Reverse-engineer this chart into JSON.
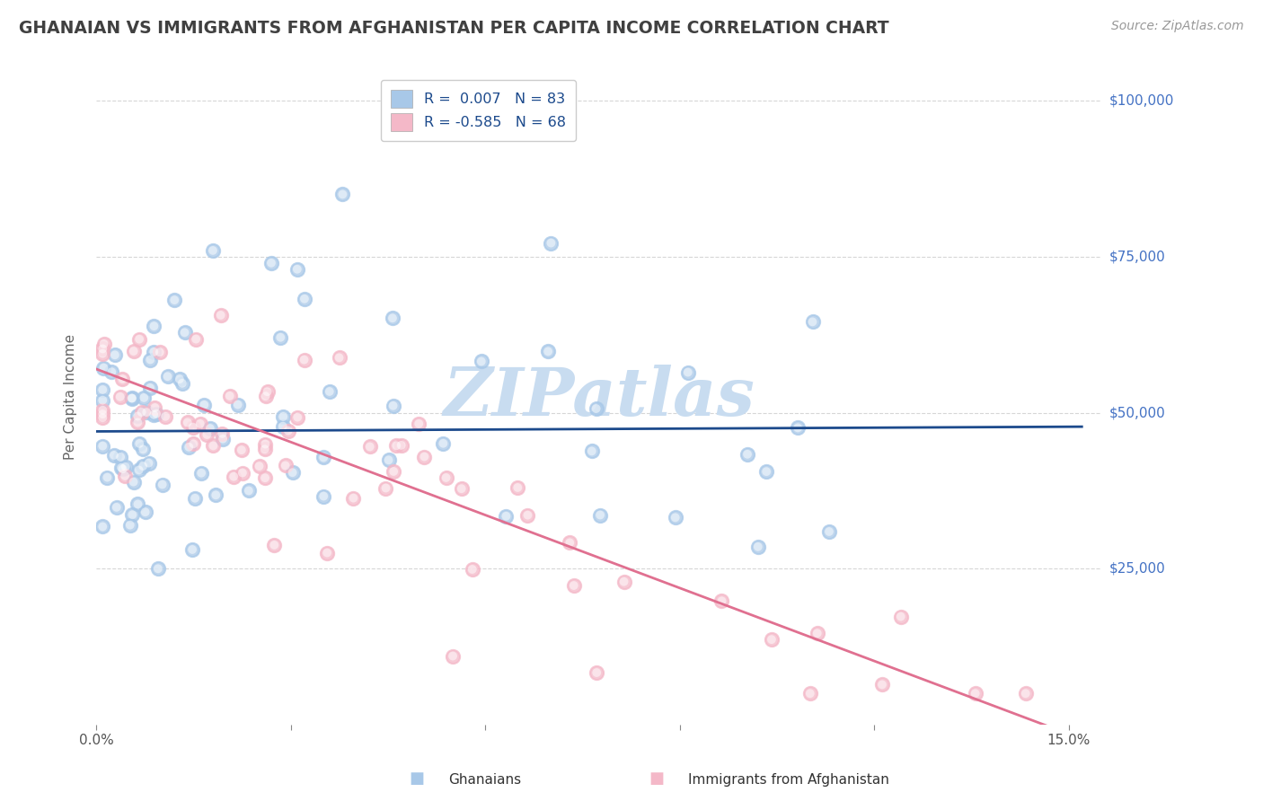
{
  "title": "GHANAIAN VS IMMIGRANTS FROM AFGHANISTAN PER CAPITA INCOME CORRELATION CHART",
  "source_text": "Source: ZipAtlas.com",
  "ylabel": "Per Capita Income",
  "xlim": [
    0.0,
    0.155
  ],
  "ylim": [
    0,
    105000
  ],
  "yticks": [
    25000,
    50000,
    75000,
    100000
  ],
  "ytick_labels": [
    "$25,000",
    "$50,000",
    "$75,000",
    "$100,000"
  ],
  "xticks": [
    0.0,
    0.03,
    0.06,
    0.09,
    0.12,
    0.15
  ],
  "xtick_labels": [
    "0.0%",
    "",
    "",
    "",
    "",
    "15.0%"
  ],
  "blue_dot_color": "#A8C8E8",
  "pink_dot_color": "#F4B8C8",
  "blue_line_color": "#1C4A8C",
  "pink_line_color": "#E07090",
  "ytick_color": "#4472C4",
  "xtick_color": "#555555",
  "ylabel_color": "#666666",
  "title_color": "#404040",
  "source_color": "#999999",
  "grid_color": "#CCCCCC",
  "watermark_color": "#C8DCF0",
  "legend_label1": "Ghanaians",
  "legend_label2": "Immigrants from Afghanistan",
  "legend_r1": "R =  0.007",
  "legend_n1": "N = 83",
  "legend_r2": "R = -0.585",
  "legend_n2": "N = 68",
  "legend_text_color": "#1C4A8C",
  "blue_trend_intercept": 47000,
  "blue_trend_slope": 5000,
  "pink_trend_intercept": 57000,
  "pink_trend_slope": -390000
}
